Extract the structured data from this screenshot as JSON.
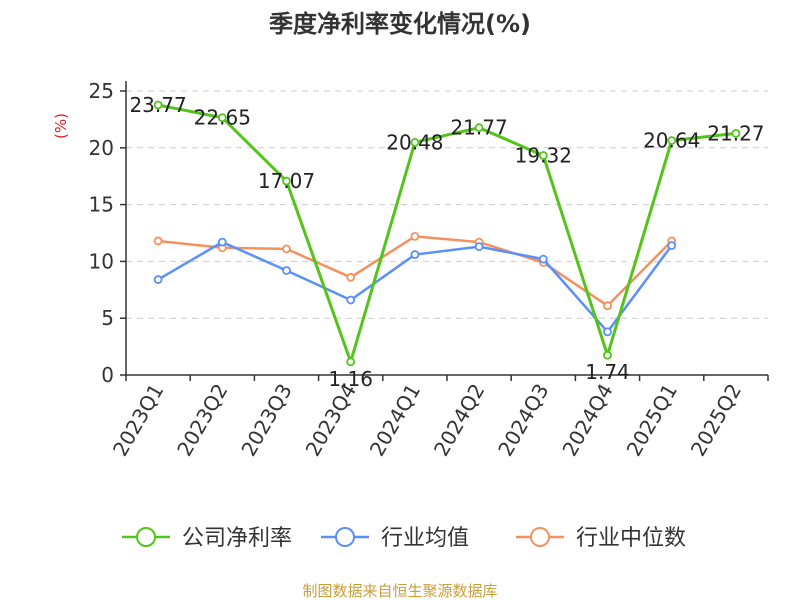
{
  "chart_data": {
    "type": "line",
    "title": "季度净利率变化情况(%)",
    "ylabel": "(%)",
    "ylim": [
      0,
      25
    ],
    "yticks": [
      "0",
      "5",
      "10",
      "15",
      "20",
      "25"
    ],
    "categories": [
      "2023Q1",
      "2023Q2",
      "2023Q3",
      "2023Q4",
      "2024Q1",
      "2024Q2",
      "2024Q3",
      "2024Q4",
      "2025Q1",
      "2025Q2"
    ],
    "grid": true,
    "legend_position": "bottom",
    "series": [
      {
        "name": "公司净利率",
        "color": "#52c41a",
        "values": [
          23.77,
          22.65,
          17.07,
          1.16,
          20.48,
          21.77,
          19.32,
          1.74,
          20.64,
          21.27
        ],
        "labels": [
          "23.77",
          "22.65",
          "17.07",
          "1.16",
          "20.48",
          "21.77",
          "19.32",
          "1.74",
          "20.64",
          "21.27"
        ]
      },
      {
        "name": "行业均值",
        "color": "#5b8ff9",
        "values": [
          8.4,
          11.7,
          9.2,
          6.6,
          10.6,
          11.3,
          10.2,
          3.8,
          11.4,
          null
        ]
      },
      {
        "name": "行业中位数",
        "color": "#f4915e",
        "values": [
          11.8,
          11.2,
          11.1,
          8.6,
          12.2,
          11.7,
          9.9,
          6.1,
          11.8,
          null
        ]
      }
    ],
    "source": "制图数据来自恒生聚源数据库"
  },
  "colors": {
    "unit_label": "#e02020",
    "source_text": "#c8a03c",
    "axis": "#333333",
    "grid": "#cccccc"
  }
}
